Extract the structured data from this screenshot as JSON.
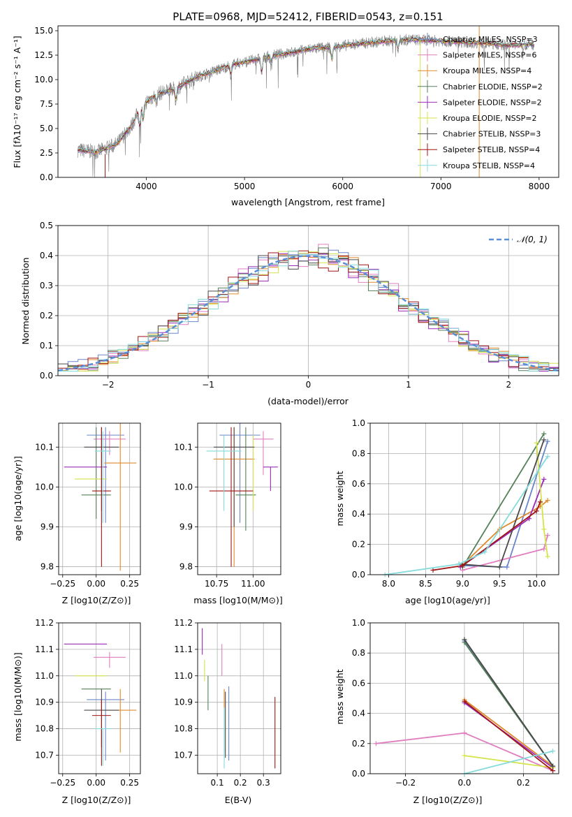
{
  "colors": {
    "chabrier_miles": "#6a86c9",
    "salpeter_miles": "#e07ec0",
    "kroupa_miles": "#e08a2a",
    "chabrier_elodie": "#55815a",
    "salpeter_elodie": "#9a2bb8",
    "kroupa_elodie": "#d4e34a",
    "chabrier_stelib": "#4a4a4a",
    "salpeter_stelib": "#a01515",
    "kroupa_stelib": "#86dbdb",
    "data": "#7f7f7f",
    "normal": "#5b8fd6"
  },
  "chart_data": [
    {
      "id": "spectrum",
      "type": "line",
      "title": "PLATE=0968, MJD=52412, FIBERID=0543, z=0.151",
      "xlabel": "wavelength [Angstrom, rest frame]",
      "ylabel": "Flux [fλ10⁻¹⁷ erg cm⁻² s⁻¹ A⁻¹]",
      "xlim": [
        3100,
        8200
      ],
      "ylim": [
        0,
        15.5
      ],
      "xticks": [
        "4000",
        "5000",
        "6000",
        "7000",
        "8000"
      ],
      "yticks": [
        "0.0",
        "2.5",
        "5.0",
        "7.5",
        "10.0",
        "12.5",
        "15.0"
      ],
      "legend_position": "right",
      "legend": [
        "Chabrier MILES, NSSP=3",
        "Salpeter MILES, NSSP=6",
        "Kroupa MILES, NSSP=4",
        "Chabrier ELODIE, NSSP=2",
        "Salpeter ELODIE, NSSP=2",
        "Kroupa ELODIE, NSSP=2",
        "Chabrier STELIB, NSSP=3",
        "Salpeter STELIB, NSSP=4",
        "Kroupa STELIB, NSSP=4"
      ],
      "continuum": {
        "x": [
          3300,
          3500,
          3700,
          3850,
          3950,
          4100,
          4300,
          4500,
          4700,
          4900,
          5100,
          5300,
          5500,
          5700,
          5900,
          6100,
          6300,
          6500,
          6700,
          6900,
          7100,
          7300,
          7500,
          7700,
          7900
        ],
        "y": [
          2.8,
          2.6,
          3.4,
          5.3,
          7.3,
          8.5,
          9.1,
          10.2,
          10.9,
          11.6,
          12.0,
          12.5,
          12.8,
          13.2,
          13.3,
          13.6,
          13.8,
          14.0,
          14.1,
          14.0,
          13.9,
          13.8,
          13.7,
          13.5,
          13.6
        ]
      },
      "grid": false
    },
    {
      "id": "residuals",
      "type": "line",
      "xlabel": "(data-model)/error",
      "ylabel": "Normed distribution",
      "xlim": [
        -2.5,
        2.5
      ],
      "ylim": [
        0,
        0.5
      ],
      "xticks": [
        "−2",
        "−1",
        "0",
        "1",
        "2"
      ],
      "yticks": [
        "0.0",
        "0.1",
        "0.2",
        "0.3",
        "0.4",
        "0.5"
      ],
      "legend": [
        "𝒩(0, 1)"
      ],
      "legend_position": "top-right",
      "grid": true,
      "bin_width": 0.1,
      "series_description": "step histograms, one per model"
    },
    {
      "id": "age_vs_Z",
      "type": "scatter",
      "xlabel": "Z [log10(Z/Z⊙)]",
      "ylabel": "age [log10(age/yr)]",
      "xlim": [
        -0.28,
        0.33
      ],
      "ylim": [
        9.78,
        10.16
      ],
      "xticks": [
        "−0.25",
        "0.00",
        "0.25"
      ],
      "yticks": [
        "9.8",
        "9.9",
        "10.0",
        "10.1"
      ],
      "grid": true,
      "points": [
        {
          "model": "chabrier_miles",
          "x": 0.07,
          "y": 10.13,
          "xerr": 0.14,
          "yerr": [
            0.22,
            0.02
          ]
        },
        {
          "model": "salpeter_miles",
          "x": 0.1,
          "y": 10.12,
          "xerr": 0.12,
          "yerr": [
            0.04,
            0.02
          ]
        },
        {
          "model": "kroupa_miles",
          "x": 0.18,
          "y": 10.06,
          "xerr": 0.12,
          "yerr": [
            0.27,
            0.1
          ]
        },
        {
          "model": "chabrier_elodie",
          "x": 0.0,
          "y": 9.98,
          "xerr": 0.11,
          "yerr": [
            0.06,
            0.17
          ]
        },
        {
          "model": "salpeter_elodie",
          "x": -0.08,
          "y": 10.05,
          "xerr": 0.16,
          "yerr": [
            0.0,
            0.0
          ]
        },
        {
          "model": "kroupa_elodie",
          "x": -0.04,
          "y": 10.02,
          "xerr": 0.12,
          "yerr": [
            0.0,
            0.0
          ]
        },
        {
          "model": "chabrier_stelib",
          "x": 0.04,
          "y": 10.1,
          "xerr": 0.13,
          "yerr": [
            0.16,
            0.05
          ]
        },
        {
          "model": "salpeter_stelib",
          "x": 0.04,
          "y": 9.99,
          "xerr": 0.07,
          "yerr": [
            0.19,
            0.16
          ]
        },
        {
          "model": "kroupa_stelib",
          "x": 0.05,
          "y": 10.09,
          "xerr": 0.06,
          "yerr": [
            0.18,
            0.05
          ]
        }
      ]
    },
    {
      "id": "age_vs_mass",
      "type": "scatter",
      "xlabel": "mass [log10(M/M⊙)]",
      "ylabel": "",
      "xlim": [
        10.62,
        11.19
      ],
      "ylim": [
        9.78,
        10.16
      ],
      "xticks": [
        "10.75",
        "11.00"
      ],
      "yticks": [
        "9.8",
        "9.9",
        "10.0",
        "10.1"
      ],
      "grid": true,
      "points": [
        {
          "model": "chabrier_miles",
          "x": 10.91,
          "y": 10.13,
          "xerr": 0.14,
          "yerr": [
            0.22,
            0.03
          ]
        },
        {
          "model": "salpeter_miles",
          "x": 11.07,
          "y": 10.12,
          "xerr": 0.07,
          "yerr": [
            0.09,
            0.02
          ]
        },
        {
          "model": "kroupa_miles",
          "x": 10.87,
          "y": 10.07,
          "xerr": 0.14,
          "yerr": [
            0.27,
            0.08
          ]
        },
        {
          "model": "chabrier_elodie",
          "x": 10.95,
          "y": 9.98,
          "xerr": 0.07,
          "yerr": [
            0.09,
            0.17
          ]
        },
        {
          "model": "salpeter_elodie",
          "x": 11.12,
          "y": 10.05,
          "xerr": 0.05,
          "yerr": [
            0.06,
            0.0
          ]
        },
        {
          "model": "kroupa_elodie",
          "x": 11.0,
          "y": 10.02,
          "xerr": 0.0,
          "yerr": [
            0.08,
            0.11
          ]
        },
        {
          "model": "chabrier_stelib",
          "x": 10.87,
          "y": 10.1,
          "xerr": 0.14,
          "yerr": [
            0.2,
            0.05
          ]
        },
        {
          "model": "salpeter_stelib",
          "x": 10.85,
          "y": 9.99,
          "xerr": 0.15,
          "yerr": [
            0.19,
            0.16
          ]
        },
        {
          "model": "kroupa_stelib",
          "x": 10.8,
          "y": 10.09,
          "xerr": 0.12,
          "yerr": [
            0.15,
            0.04
          ]
        }
      ]
    },
    {
      "id": "weight_vs_age",
      "type": "line",
      "xlabel": "age [log10(age/yr)]",
      "ylabel": "mass weight",
      "xlim": [
        7.75,
        10.3
      ],
      "ylim": [
        0,
        1
      ],
      "xticks": [
        "8.0",
        "8.5",
        "9.0",
        "9.5",
        "10.0"
      ],
      "yticks": [
        "0.0",
        "0.2",
        "0.4",
        "0.6",
        "0.8",
        "1.0"
      ],
      "grid": true,
      "series": [
        {
          "model": "chabrier_miles",
          "x": [
            9.0,
            9.6,
            10.15
          ],
          "y": [
            0.06,
            0.05,
            0.88
          ]
        },
        {
          "model": "salpeter_miles",
          "x": [
            9.0,
            10.1,
            10.15
          ],
          "y": [
            0.03,
            0.17,
            0.26
          ]
        },
        {
          "model": "kroupa_miles",
          "x": [
            8.97,
            9.5,
            10.05,
            10.15
          ],
          "y": [
            0.05,
            0.3,
            0.45,
            0.49
          ]
        },
        {
          "model": "chabrier_elodie",
          "x": [
            9.0,
            10.1
          ],
          "y": [
            0.05,
            0.93
          ]
        },
        {
          "model": "salpeter_elodie",
          "x": [
            8.97,
            9.9,
            10.1
          ],
          "y": [
            0.05,
            0.37,
            0.63
          ]
        },
        {
          "model": "kroupa_elodie",
          "x": [
            10.0,
            10.1,
            10.15
          ],
          "y": [
            0.87,
            0.3,
            0.12
          ]
        },
        {
          "model": "chabrier_stelib",
          "x": [
            8.95,
            9.5,
            10.1
          ],
          "y": [
            0.07,
            0.05,
            0.89
          ]
        },
        {
          "model": "salpeter_stelib",
          "x": [
            8.6,
            9.0,
            10.0,
            10.05
          ],
          "y": [
            0.03,
            0.06,
            0.42,
            0.48
          ]
        },
        {
          "model": "kroupa_stelib",
          "x": [
            7.95,
            8.95,
            9.3,
            10.15
          ],
          "y": [
            0.0,
            0.07,
            0.15,
            0.78
          ]
        }
      ]
    },
    {
      "id": "mass_vs_Z",
      "type": "scatter",
      "xlabel": "Z [log10(Z/Z⊙)]",
      "ylabel": "mass [log10(M/M⊙)]",
      "xlim": [
        -0.28,
        0.33
      ],
      "ylim": [
        10.63,
        11.2
      ],
      "xticks": [
        "−0.25",
        "0.00",
        "0.25"
      ],
      "yticks": [
        "10.7",
        "10.8",
        "10.9",
        "11.0",
        "11.1",
        "11.2"
      ],
      "grid": true,
      "points": [
        {
          "model": "chabrier_miles",
          "x": 0.07,
          "y": 10.91,
          "xerr": 0.14,
          "yerr": [
            0.23,
            0.03
          ]
        },
        {
          "model": "salpeter_miles",
          "x": 0.1,
          "y": 11.07,
          "xerr": 0.12,
          "yerr": [
            0.04,
            0.02
          ]
        },
        {
          "model": "kroupa_miles",
          "x": 0.18,
          "y": 10.87,
          "xerr": 0.12,
          "yerr": [
            0.16,
            0.08
          ]
        },
        {
          "model": "chabrier_elodie",
          "x": 0.0,
          "y": 10.95,
          "xerr": 0.11,
          "yerr": [
            0.0,
            0.0
          ]
        },
        {
          "model": "salpeter_elodie",
          "x": -0.08,
          "y": 11.12,
          "xerr": 0.16,
          "yerr": [
            0.0,
            0.0
          ]
        },
        {
          "model": "kroupa_elodie",
          "x": -0.04,
          "y": 11.0,
          "xerr": 0.12,
          "yerr": [
            0.0,
            0.0
          ]
        },
        {
          "model": "chabrier_stelib",
          "x": 0.04,
          "y": 10.87,
          "xerr": 0.13,
          "yerr": [
            0.14,
            0.08
          ]
        },
        {
          "model": "salpeter_stelib",
          "x": 0.04,
          "y": 10.85,
          "xerr": 0.07,
          "yerr": [
            0.19,
            0.06
          ]
        },
        {
          "model": "kroupa_stelib",
          "x": 0.05,
          "y": 10.8,
          "xerr": 0.06,
          "yerr": [
            0.14,
            0.0
          ]
        }
      ]
    },
    {
      "id": "mass_vs_ebv",
      "type": "scatter",
      "xlabel": "E(B-V)",
      "ylabel": "",
      "xlim": [
        0.015,
        0.375
      ],
      "ylim": [
        10.63,
        11.2
      ],
      "xticks": [
        "0.1",
        "0.2",
        "0.3"
      ],
      "yticks": [
        "10.7",
        "10.8",
        "10.9",
        "11.0",
        "11.1",
        "11.2"
      ],
      "grid": true,
      "points": [
        {
          "model": "chabrier_miles",
          "x": 0.15,
          "y": 10.91,
          "xerr": 0.0,
          "yerr": [
            0.23,
            0.05
          ]
        },
        {
          "model": "salpeter_miles",
          "x": 0.12,
          "y": 11.07,
          "xerr": 0.0,
          "yerr": [
            0.07,
            0.05
          ]
        },
        {
          "model": "kroupa_miles",
          "x": 0.13,
          "y": 10.87,
          "xerr": 0.0,
          "yerr": [
            0.16,
            0.08
          ]
        },
        {
          "model": "chabrier_elodie",
          "x": 0.06,
          "y": 10.95,
          "xerr": 0.0,
          "yerr": [
            0.08,
            0.05
          ]
        },
        {
          "model": "salpeter_elodie",
          "x": 0.035,
          "y": 11.12,
          "xerr": 0.0,
          "yerr": [
            0.04,
            0.06
          ]
        },
        {
          "model": "kroupa_elodie",
          "x": 0.045,
          "y": 11.0,
          "xerr": 0.0,
          "yerr": [
            0.02,
            0.06
          ]
        },
        {
          "model": "chabrier_stelib",
          "x": 0.135,
          "y": 10.87,
          "xerr": 0.0,
          "yerr": [
            0.18,
            0.07
          ]
        },
        {
          "model": "salpeter_stelib",
          "x": 0.35,
          "y": 10.85,
          "xerr": 0.0,
          "yerr": [
            0.2,
            0.07
          ]
        },
        {
          "model": "kroupa_stelib",
          "x": 0.13,
          "y": 10.8,
          "xerr": 0.0,
          "yerr": [
            0.15,
            0.08
          ]
        }
      ]
    },
    {
      "id": "weight_vs_Z",
      "type": "line",
      "xlabel": "Z [log10(Z/Z⊙)]",
      "ylabel": "mass weight",
      "xlim": [
        -0.32,
        0.32
      ],
      "ylim": [
        0,
        1
      ],
      "xticks": [
        "−0.2",
        "0.0",
        "0.2"
      ],
      "yticks": [
        "0.0",
        "0.2",
        "0.4",
        "0.6",
        "0.8",
        "1.0"
      ],
      "grid": true,
      "series": [
        {
          "model": "chabrier_miles",
          "x": [
            0.0,
            0.3
          ],
          "y": [
            0.88,
            0.05
          ]
        },
        {
          "model": "salpeter_miles",
          "x": [
            -0.3,
            0.0,
            0.3
          ],
          "y": [
            0.2,
            0.27,
            0.02
          ]
        },
        {
          "model": "kroupa_miles",
          "x": [
            0.0,
            0.3
          ],
          "y": [
            0.49,
            0.05
          ]
        },
        {
          "model": "chabrier_elodie",
          "x": [
            0.0,
            0.3
          ],
          "y": [
            0.87,
            0.05
          ]
        },
        {
          "model": "salpeter_elodie",
          "x": [
            0.0,
            0.3
          ],
          "y": [
            0.47,
            0.04
          ]
        },
        {
          "model": "kroupa_elodie",
          "x": [
            0.0,
            0.3
          ],
          "y": [
            0.12,
            0.04
          ]
        },
        {
          "model": "chabrier_stelib",
          "x": [
            0.0,
            0.3
          ],
          "y": [
            0.89,
            0.05
          ]
        },
        {
          "model": "salpeter_stelib",
          "x": [
            0.0,
            0.3
          ],
          "y": [
            0.48,
            0.02
          ]
        },
        {
          "model": "kroupa_stelib",
          "x": [
            0.0,
            0.3
          ],
          "y": [
            0.0,
            0.15
          ]
        }
      ]
    }
  ]
}
